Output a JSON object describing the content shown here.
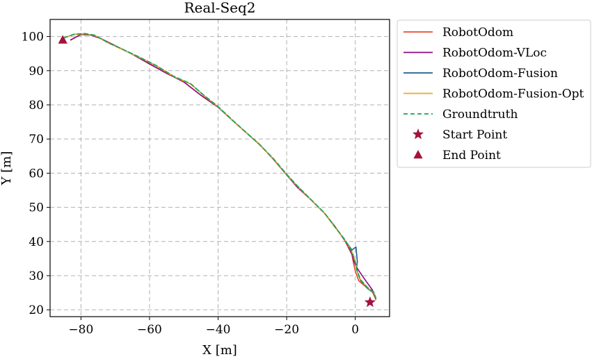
{
  "chart_data": {
    "type": "line",
    "title": "Real-Seq2",
    "xlabel": "X [m]",
    "ylabel": "Y [m]",
    "xlim": [
      -89,
      10
    ],
    "ylim": [
      18,
      105
    ],
    "xticks": [
      -80,
      -60,
      -40,
      -20,
      0
    ],
    "xtick_labels": [
      "−80",
      "−60",
      "−40",
      "−20",
      "0"
    ],
    "yticks": [
      20,
      30,
      40,
      50,
      60,
      70,
      80,
      90,
      100
    ],
    "ytick_labels": [
      "20",
      "30",
      "40",
      "50",
      "60",
      "70",
      "80",
      "90",
      "100"
    ],
    "grid": true,
    "legend_position": "outside-right",
    "series": [
      {
        "name": "RobotOdom",
        "color": "#e8472d",
        "style": "solid",
        "x": [
          -83,
          -80,
          -77,
          -74,
          -70,
          -65,
          -60,
          -55,
          -50,
          -45,
          -40,
          -36,
          -32,
          -28,
          -24,
          -20,
          -17,
          -13,
          -9,
          -6,
          -3,
          -1,
          -0.5,
          0,
          1,
          3,
          5,
          6
        ],
        "y": [
          99,
          100.6,
          100.4,
          99.3,
          97.3,
          94.8,
          92.0,
          89.2,
          86.7,
          82.8,
          79.3,
          75.6,
          72.0,
          68.5,
          64.2,
          59.5,
          56.0,
          52.3,
          48.3,
          44.5,
          40.2,
          36.2,
          33.6,
          31.4,
          28.5,
          26.8,
          25.2,
          23.0
        ]
      },
      {
        "name": "RobotOdom-VLoc",
        "color": "#8b0a7f",
        "style": "solid",
        "x": [
          -83,
          -80,
          -77,
          -74,
          -70,
          -65,
          -60,
          -55,
          -50,
          -45,
          -40,
          -36,
          -32,
          -28,
          -24,
          -20,
          -17,
          -13,
          -9,
          -6,
          -3,
          -1,
          -0.5,
          0,
          1,
          3,
          5,
          6
        ],
        "y": [
          99,
          100.6,
          100.4,
          99.3,
          97.3,
          94.8,
          92.0,
          89.2,
          86.7,
          82.8,
          79.3,
          75.6,
          72.0,
          68.5,
          64.2,
          59.5,
          56.0,
          52.3,
          48.3,
          44.5,
          40.2,
          36.5,
          34.6,
          33.2,
          31.5,
          28.6,
          25.8,
          23.5
        ]
      },
      {
        "name": "RobotOdom-Fusion",
        "color": "#1b5f86",
        "style": "solid",
        "x": [
          -85,
          -82,
          -79,
          -76,
          -72,
          -67,
          -63,
          -58,
          -53,
          -48,
          -44,
          -40,
          -36,
          -32,
          -28,
          -24,
          -20,
          -17,
          -13,
          -9,
          -6,
          -3,
          -1,
          0.2,
          0.6,
          0.3,
          1.5,
          3.5,
          5.5,
          6
        ],
        "y": [
          99.6,
          100.6,
          100.8,
          100.3,
          98.1,
          95.8,
          93.9,
          91.4,
          88.3,
          86.1,
          82.6,
          79.4,
          75.6,
          72.0,
          68.4,
          64.3,
          59.6,
          56.3,
          52.3,
          48.3,
          44.3,
          40.4,
          37.5,
          38.4,
          34.0,
          32.0,
          28.6,
          26.3,
          24.8,
          23.0
        ]
      },
      {
        "name": "RobotOdom-Fusion-Opt",
        "color": "#f2a818",
        "style": "solid",
        "x": [
          -85,
          -82,
          -79,
          -76,
          -72,
          -67,
          -63,
          -58,
          -53,
          -48,
          -44,
          -40,
          -36,
          -32,
          -28,
          -24,
          -20,
          -17,
          -13,
          -9,
          -6,
          -3,
          -1,
          0,
          0.5,
          1.5,
          3.5,
          5.5,
          6
        ],
        "y": [
          99.6,
          100.6,
          100.8,
          100.3,
          98.1,
          95.8,
          93.9,
          91.4,
          88.3,
          86.1,
          82.6,
          79.4,
          75.6,
          72.0,
          68.4,
          64.3,
          59.6,
          56.3,
          52.3,
          48.3,
          44.3,
          40.4,
          37.0,
          34.0,
          31.5,
          28.8,
          26.5,
          25.0,
          23.0
        ]
      },
      {
        "name": "Groundtruth",
        "color": "#16a25e",
        "style": "dashed",
        "x": [
          -85,
          -82,
          -79,
          -76,
          -72,
          -67,
          -63,
          -58,
          -53,
          -48,
          -44,
          -40,
          -36,
          -32,
          -28,
          -24,
          -20,
          -17,
          -13,
          -9,
          -6,
          -3,
          -1,
          0,
          0.5,
          1.5,
          3.5,
          5.5,
          6
        ],
        "y": [
          99.6,
          100.7,
          100.9,
          100.4,
          98.2,
          95.9,
          94.0,
          91.5,
          88.4,
          86.2,
          82.7,
          79.5,
          75.7,
          72.1,
          68.5,
          64.4,
          59.7,
          56.4,
          52.4,
          48.4,
          44.4,
          40.5,
          37.1,
          34.1,
          31.6,
          28.9,
          26.6,
          25.1,
          23.1
        ]
      }
    ],
    "markers": [
      {
        "name": "Start Point",
        "marker": "star",
        "color": "#a3123b",
        "x": 4.3,
        "y": 22.2
      },
      {
        "name": "End Point",
        "marker": "triangle",
        "color": "#a3123b",
        "x": -85.3,
        "y": 99.0
      }
    ]
  }
}
